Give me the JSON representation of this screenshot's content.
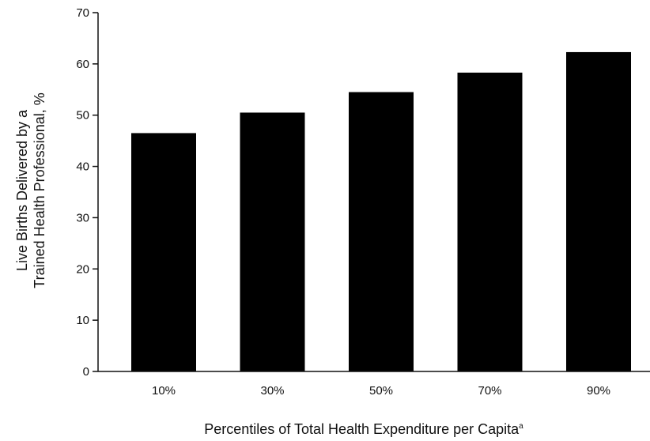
{
  "chart_data": {
    "type": "bar",
    "categories": [
      "10%",
      "30%",
      "50%",
      "70%",
      "90%"
    ],
    "values": [
      46.5,
      50.5,
      54.5,
      58.3,
      62.3
    ],
    "xlabel": "Percentiles of Total Health Expenditure per Capita",
    "xlabel_superscript": "a",
    "ylabel_lines": [
      "Live Births Delivered by a",
      "Trained Health Professional, %"
    ],
    "ylim": [
      0,
      70
    ],
    "yticks": [
      "0",
      "10",
      "20",
      "30",
      "40",
      "50",
      "60",
      "70"
    ],
    "grid": false,
    "bar_color": "#000000"
  }
}
